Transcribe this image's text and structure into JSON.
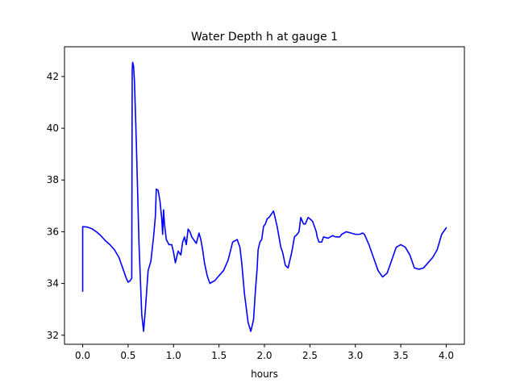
{
  "chart_data": {
    "type": "line",
    "title": "Water Depth h at gauge 1",
    "xlabel": "hours",
    "ylabel": "",
    "xlim": [
      -0.2,
      4.2
    ],
    "ylim": [
      31.65,
      43.15
    ],
    "xticks": [
      0.0,
      0.5,
      1.0,
      1.5,
      2.0,
      2.5,
      3.0,
      3.5,
      4.0
    ],
    "xtick_labels": [
      "0.0",
      "0.5",
      "1.0",
      "1.5",
      "2.0",
      "2.5",
      "3.0",
      "3.5",
      "4.0"
    ],
    "yticks": [
      32,
      34,
      36,
      38,
      40,
      42
    ],
    "ytick_labels": [
      "32",
      "34",
      "36",
      "38",
      "40",
      "42"
    ],
    "grid": false,
    "legend": "none",
    "series": [
      {
        "color": "#0000ff",
        "x": [
          0.0,
          0.0,
          0.05,
          0.1,
          0.15,
          0.2,
          0.25,
          0.3,
          0.35,
          0.4,
          0.45,
          0.48,
          0.5,
          0.52,
          0.54,
          0.545,
          0.55,
          0.56,
          0.57,
          0.59,
          0.62,
          0.65,
          0.67,
          0.69,
          0.72,
          0.75,
          0.78,
          0.8,
          0.81,
          0.83,
          0.85,
          0.87,
          0.88,
          0.89,
          0.9,
          0.92,
          0.95,
          0.98,
          1.0,
          1.02,
          1.05,
          1.08,
          1.1,
          1.12,
          1.14,
          1.16,
          1.18,
          1.2,
          1.22,
          1.25,
          1.28,
          1.3,
          1.32,
          1.34,
          1.37,
          1.4,
          1.42,
          1.45,
          1.5,
          1.55,
          1.6,
          1.65,
          1.7,
          1.73,
          1.75,
          1.78,
          1.82,
          1.85,
          1.88,
          1.9,
          1.92,
          1.93,
          1.95,
          1.97,
          1.99,
          2.01,
          2.03,
          2.05,
          2.08,
          2.1,
          2.12,
          2.14,
          2.16,
          2.18,
          2.2,
          2.23,
          2.26,
          2.3,
          2.33,
          2.36,
          2.38,
          2.4,
          2.43,
          2.45,
          2.48,
          2.5,
          2.53,
          2.55,
          2.57,
          2.58,
          2.6,
          2.63,
          2.65,
          2.7,
          2.75,
          2.78,
          2.8,
          2.83,
          2.85,
          2.9,
          2.95,
          3.0,
          3.05,
          3.08,
          3.1,
          3.15,
          3.2,
          3.25,
          3.3,
          3.35,
          3.4,
          3.45,
          3.5,
          3.55,
          3.6,
          3.65,
          3.7,
          3.75,
          3.8,
          3.85,
          3.9,
          3.95,
          4.0
        ],
        "y": [
          33.7,
          36.2,
          36.18,
          36.12,
          36.0,
          35.85,
          35.65,
          35.5,
          35.3,
          35.0,
          34.5,
          34.2,
          34.05,
          34.1,
          34.2,
          42.3,
          42.55,
          42.4,
          41.8,
          39.5,
          35.5,
          32.8,
          32.15,
          33.0,
          34.5,
          34.85,
          35.8,
          36.6,
          37.65,
          37.6,
          37.2,
          36.5,
          35.9,
          36.85,
          36.3,
          35.7,
          35.5,
          35.5,
          35.2,
          34.8,
          35.25,
          35.1,
          35.6,
          35.8,
          35.5,
          36.1,
          36.0,
          35.8,
          35.7,
          35.55,
          35.95,
          35.7,
          35.3,
          34.8,
          34.3,
          34.0,
          34.05,
          34.1,
          34.3,
          34.5,
          34.9,
          35.6,
          35.7,
          35.4,
          34.8,
          33.6,
          32.5,
          32.15,
          32.6,
          33.7,
          34.6,
          35.3,
          35.6,
          35.7,
          36.2,
          36.3,
          36.5,
          36.55,
          36.7,
          36.8,
          36.5,
          36.2,
          35.8,
          35.4,
          35.2,
          34.7,
          34.6,
          35.2,
          35.8,
          35.9,
          36.0,
          36.55,
          36.3,
          36.3,
          36.55,
          36.5,
          36.4,
          36.2,
          36.0,
          35.8,
          35.6,
          35.6,
          35.8,
          35.75,
          35.85,
          35.8,
          35.8,
          35.8,
          35.9,
          36.0,
          35.95,
          35.9,
          35.9,
          35.95,
          35.9,
          35.5,
          35.0,
          34.5,
          34.25,
          34.4,
          34.9,
          35.4,
          35.5,
          35.4,
          35.1,
          34.6,
          34.55,
          34.6,
          34.8,
          35.0,
          35.3,
          35.9,
          36.15
        ]
      }
    ]
  }
}
